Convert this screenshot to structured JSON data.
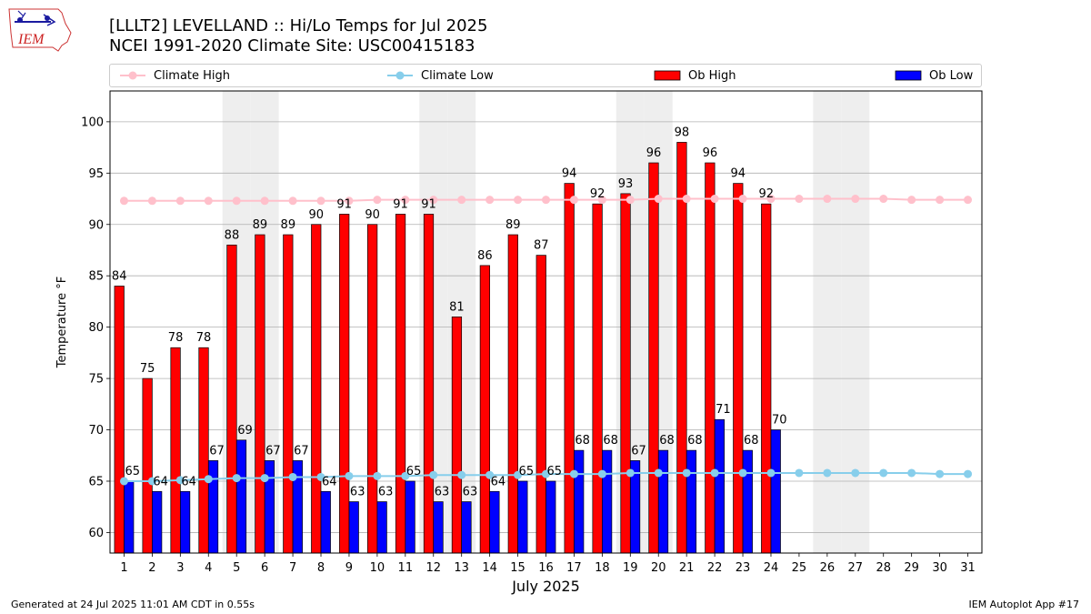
{
  "header": {
    "title_line1": "[LLLT2] LEVELLAND :: Hi/Lo Temps for Jul 2025",
    "title_line2": "NCEI 1991-2020 Climate Site: USC00415183",
    "logo_text": "IEM"
  },
  "legend": {
    "climate_high": "Climate High",
    "climate_low": "Climate Low",
    "ob_high": "Ob High",
    "ob_low": "Ob Low"
  },
  "footer": {
    "left": "Generated at 24 Jul 2025 11:01 AM CDT in 0.55s",
    "right": "IEM Autoplot App #17"
  },
  "colors": {
    "ob_high": "#ff0000",
    "ob_low": "#0000ff",
    "climate_high": "#ffc0cb",
    "climate_low": "#87ceeb",
    "weekend_shade": "#eeeeee",
    "grid": "#b0b0b0"
  },
  "chart_data": {
    "type": "bar",
    "xlabel": "July 2025",
    "ylabel": "Temperature °F",
    "ylim": [
      58,
      103
    ],
    "yticks": [
      60,
      65,
      70,
      75,
      80,
      85,
      90,
      95,
      100
    ],
    "grid": "horizontal",
    "legend_position": "top",
    "days": [
      1,
      2,
      3,
      4,
      5,
      6,
      7,
      8,
      9,
      10,
      11,
      12,
      13,
      14,
      15,
      16,
      17,
      18,
      19,
      20,
      21,
      22,
      23,
      24,
      25,
      26,
      27,
      28,
      29,
      30,
      31
    ],
    "weekend_days": [
      5,
      6,
      12,
      13,
      19,
      20,
      26,
      27
    ],
    "series": [
      {
        "name": "Ob High",
        "kind": "bar",
        "values": [
          84,
          75,
          78,
          78,
          88,
          89,
          89,
          90,
          91,
          90,
          91,
          91,
          81,
          86,
          89,
          87,
          94,
          92,
          93,
          96,
          98,
          96,
          94,
          92
        ]
      },
      {
        "name": "Ob Low",
        "kind": "bar",
        "values": [
          65,
          64,
          64,
          67,
          69,
          67,
          67,
          64,
          63,
          63,
          65,
          63,
          63,
          64,
          65,
          65,
          68,
          68,
          67,
          68,
          68,
          71,
          68,
          70
        ]
      },
      {
        "name": "Climate High",
        "kind": "line",
        "values": [
          92.3,
          92.3,
          92.3,
          92.3,
          92.3,
          92.3,
          92.3,
          92.3,
          92.3,
          92.4,
          92.4,
          92.4,
          92.4,
          92.4,
          92.4,
          92.4,
          92.4,
          92.4,
          92.4,
          92.5,
          92.5,
          92.5,
          92.5,
          92.5,
          92.5,
          92.5,
          92.5,
          92.5,
          92.4,
          92.4,
          92.4
        ]
      },
      {
        "name": "Climate Low",
        "kind": "line",
        "values": [
          65.0,
          65.0,
          65.1,
          65.2,
          65.3,
          65.3,
          65.4,
          65.4,
          65.5,
          65.5,
          65.5,
          65.6,
          65.6,
          65.6,
          65.6,
          65.7,
          65.7,
          65.7,
          65.8,
          65.8,
          65.8,
          65.8,
          65.8,
          65.8,
          65.8,
          65.8,
          65.8,
          65.8,
          65.8,
          65.7,
          65.7
        ]
      }
    ]
  }
}
